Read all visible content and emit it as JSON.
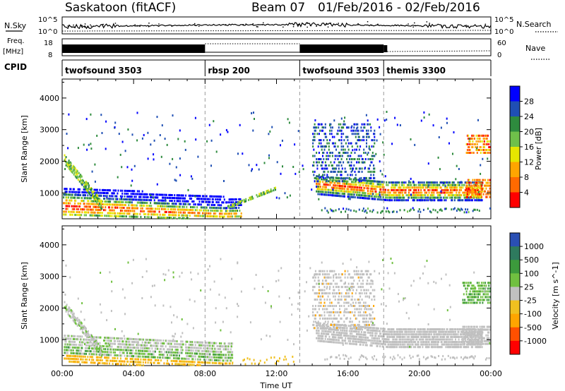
{
  "header": {
    "station": "Saskatoon (fitACF)",
    "beam": "Beam 07",
    "date_range": "01/Feb/2016 - 02/Feb/2016"
  },
  "nsky_panel": {
    "left_label": "N.Sky",
    "right_label": "N.Search",
    "left_ticks": [
      "10^5",
      "10^0"
    ],
    "right_ticks": [
      "10^5",
      "10^0"
    ]
  },
  "freq_panel": {
    "left_label_1": "Freq.",
    "left_label_2": "[MHz]",
    "left_ticks": [
      "18",
      "8"
    ],
    "right_ticks": [
      "60",
      "0"
    ],
    "right_label": "Nave"
  },
  "cpid": {
    "label": "CPID",
    "segments": [
      {
        "name": "twofsound 3503",
        "start": 0,
        "end": 8
      },
      {
        "name": "rbsp 200",
        "start": 8,
        "end": 13.3
      },
      {
        "name": "twofsound 3503",
        "start": 13.3,
        "end": 18
      },
      {
        "name": "themis 3300",
        "start": 18,
        "end": 24
      }
    ]
  },
  "chart_data": [
    {
      "type": "heatmap",
      "ylabel": "Slant Range [km]",
      "ylim": [
        180,
        4600
      ],
      "yticks": [
        "1000",
        "2000",
        "3000",
        "4000"
      ],
      "xlim": [
        0,
        24
      ],
      "colorbar": {
        "label": "Power [dB]",
        "ticks": [
          "4",
          "8",
          "12",
          "16",
          "20",
          "24",
          "28"
        ],
        "colors": [
          "#0000ff",
          "#1f4fb4",
          "#2e8b3e",
          "#6fc04a",
          "#e6e600",
          "#ffa500",
          "#ff6a00",
          "#ff0000"
        ]
      }
    },
    {
      "type": "heatmap",
      "ylabel": "Slant Range [km]",
      "ylim": [
        180,
        4600
      ],
      "yticks": [
        "1000",
        "2000",
        "3000",
        "4000"
      ],
      "xlim": [
        0,
        24
      ],
      "xlabel": "Time UT",
      "xticks": [
        "00:00",
        "04:00",
        "08:00",
        "12:00",
        "16:00",
        "20:00",
        "00:00"
      ],
      "colorbar": {
        "label": "Velocity [m s^-1]",
        "ticks": [
          "1000",
          "500",
          "100",
          "25",
          "-25",
          "-100",
          "-500",
          "-1000"
        ],
        "colors": [
          "#2a4fb4",
          "#2e7a5e",
          "#3c9a3c",
          "#70c040",
          "#c0c0c0",
          "#f0c020",
          "#ffa500",
          "#ff5000",
          "#ff0000"
        ]
      }
    }
  ]
}
